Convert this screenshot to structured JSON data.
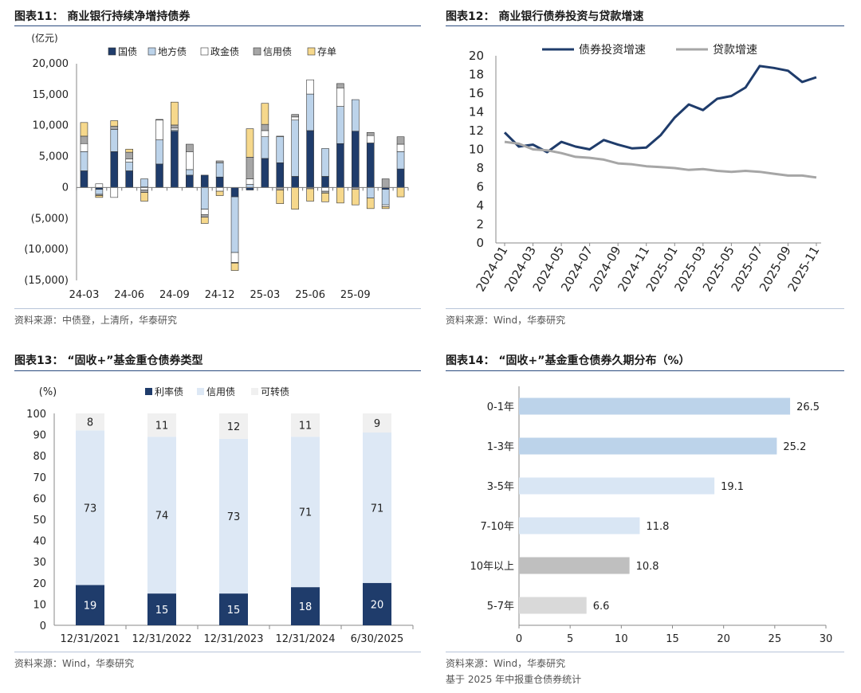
{
  "panels": [
    {
      "title": "图表11：   商业银行持续净增持债券",
      "source": "资料来源：中债登，上清所，华泰研究",
      "source2": ""
    },
    {
      "title": "图表12：   商业银行债券投资与贷款增速",
      "source": "资料来源：Wind，华泰研究",
      "source2": ""
    },
    {
      "title": "图表13：   “固收+”基金重仓债券类型",
      "source": "资料来源：Wind，华泰研究",
      "source2": ""
    },
    {
      "title": "图表14：   “固收+”基金重仓债券久期分布（%）",
      "source": "资料来源：Wind，华泰研究",
      "source2": "基于 2025 年中报重仓债券统计"
    }
  ],
  "chart_data": [
    {
      "type": "bar",
      "stacked": true,
      "unit_label": "(亿元)",
      "ylim": [
        -15000,
        20000
      ],
      "yticks": [
        20000,
        15000,
        10000,
        5000,
        0,
        -5000,
        -10000,
        -15000
      ],
      "ytick_labels": [
        "20,000",
        "15,000",
        "10,000",
        "5,000",
        "0",
        "(5,000)",
        "(10,000)",
        "(15,000)"
      ],
      "xtick_labels": [
        "24-03",
        "24-06",
        "24-09",
        "24-12",
        "25-03",
        "25-06",
        "25-09"
      ],
      "xtick_index": [
        0,
        3,
        6,
        9,
        12,
        15,
        18
      ],
      "colors": {
        "国债": "#1f3c6b",
        "地方债": "#bcd3ea",
        "政金债": "#ffffff",
        "信用债": "#a6a6a6",
        "存单": "#f6d88c"
      },
      "series": [
        {
          "name": "国债",
          "values": [
            2700,
            -300,
            5800,
            2700,
            100,
            3800,
            9100,
            2000,
            2000,
            1700,
            -1500,
            -400,
            4700,
            4000,
            1800,
            9200,
            1800,
            7100,
            9100,
            7200,
            -300,
            3000
          ]
        },
        {
          "name": "地方债",
          "values": [
            3100,
            -800,
            3600,
            1400,
            1300,
            3900,
            200,
            900,
            -3500,
            2300,
            -9000,
            500,
            3500,
            4200,
            9100,
            5900,
            4500,
            6000,
            5100,
            -1700,
            -2500,
            2800
          ]
        },
        {
          "name": "政金债",
          "values": [
            1300,
            600,
            -1600,
            500,
            -400,
            3200,
            300,
            2900,
            -900,
            -600,
            -1600,
            900,
            1000,
            100,
            500,
            2300,
            -600,
            3000,
            0,
            1200,
            -300,
            1200
          ]
        },
        {
          "name": "信用债",
          "values": [
            1200,
            -200,
            500,
            1100,
            -400,
            100,
            500,
            1200,
            -400,
            300,
            -100,
            3500,
            1000,
            -400,
            400,
            -200,
            -300,
            700,
            -300,
            500,
            1400,
            1200
          ]
        },
        {
          "name": "存单",
          "values": [
            2200,
            -300,
            900,
            500,
            -1400,
            0,
            3700,
            0,
            -1000,
            -700,
            -1200,
            4600,
            3400,
            -2200,
            -3500,
            -2000,
            -1400,
            -2500,
            -2500,
            -1700,
            -300,
            -1500
          ]
        }
      ]
    },
    {
      "type": "line",
      "ylim": [
        0,
        20
      ],
      "yticks": [
        0,
        2,
        4,
        6,
        8,
        10,
        12,
        14,
        16,
        18,
        20
      ],
      "xtick_labels": [
        "2024-01",
        "2024-03",
        "2024-05",
        "2024-07",
        "2024-09",
        "2024-11",
        "2025-01",
        "2025-03",
        "2025-05",
        "2025-07",
        "2025-09",
        "2025-11"
      ],
      "series": [
        {
          "name": "债券投资增速",
          "color": "#1f3c6b",
          "values": [
            11.8,
            10.3,
            10.5,
            9.7,
            10.8,
            10.3,
            10.0,
            11.0,
            10.5,
            10.1,
            10.2,
            11.5,
            13.4,
            14.8,
            14.2,
            15.4,
            15.7,
            16.6,
            18.9,
            18.7,
            18.4,
            17.2,
            17.7
          ]
        },
        {
          "name": "贷款增速",
          "color": "#a6a6a6",
          "values": [
            10.8,
            10.6,
            10.0,
            9.9,
            9.6,
            9.2,
            9.1,
            8.9,
            8.5,
            8.4,
            8.2,
            8.1,
            8.0,
            7.8,
            7.9,
            7.7,
            7.6,
            7.7,
            7.6,
            7.4,
            7.2,
            7.2,
            7.0
          ]
        }
      ]
    },
    {
      "type": "bar",
      "stacked": true,
      "unit_label": "(%)",
      "ylim": [
        0,
        100
      ],
      "yticks": [
        0,
        10,
        20,
        30,
        40,
        50,
        60,
        70,
        80,
        90,
        100
      ],
      "categories": [
        "12/31/2021",
        "12/31/2022",
        "12/31/2023",
        "12/31/2024",
        "6/30/2025"
      ],
      "series": [
        {
          "name": "利率债",
          "color": "#1f3c6b",
          "values": [
            19,
            15,
            15,
            18,
            20
          ]
        },
        {
          "name": "信用债",
          "color": "#dde8f5",
          "values": [
            73,
            74,
            73,
            71,
            71
          ]
        },
        {
          "name": "可转债",
          "color": "#f0f0f0",
          "values": [
            8,
            11,
            12,
            11,
            9
          ]
        }
      ]
    },
    {
      "type": "bar",
      "orientation": "horizontal",
      "xlim": [
        0,
        30
      ],
      "xticks": [
        0,
        5,
        10,
        15,
        20,
        25,
        30
      ],
      "categories": [
        "0-1年",
        "1-3年",
        "3-5年",
        "7-10年",
        "10年以上",
        "5-7年"
      ],
      "values": [
        26.5,
        25.2,
        19.1,
        11.8,
        10.8,
        6.6
      ],
      "colors": [
        "#bcd3ea",
        "#bcd3ea",
        "#d9e6f4",
        "#d9e6f4",
        "#bfbfbf",
        "#d9d9d9"
      ]
    }
  ]
}
